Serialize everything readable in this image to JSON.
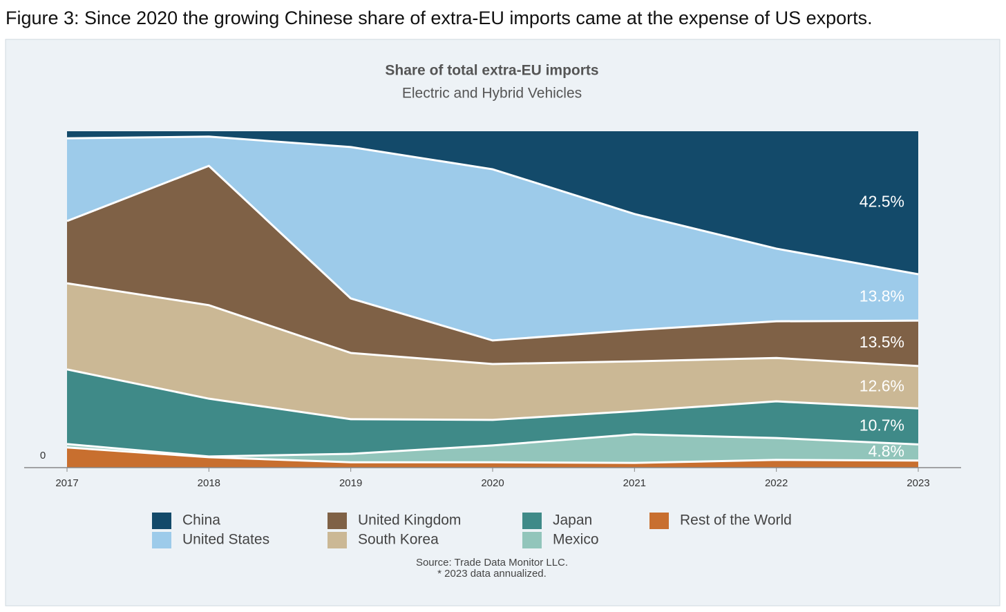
{
  "chart_data": {
    "type": "stacked_area",
    "caption": "Figure 3: Since 2020 the growing Chinese share of extra-EU imports came at the expense of US exports.",
    "title": "Share of total extra-EU imports",
    "subtitle": "Electric and Hybrid Vehicles",
    "source": "Source: Trade Data Monitor LLC.",
    "note": "* 2023 data annualized.",
    "categories": [
      "2017",
      "2018",
      "2019",
      "2020",
      "2021",
      "2022",
      "2023"
    ],
    "ylim": [
      0,
      100
    ],
    "yticks": [
      0
    ],
    "series": [
      {
        "name": "China",
        "color": "#134a6a",
        "values": [
          2.1,
          1.6,
          4.7,
          11.3,
          24.6,
          34.9,
          42.5
        ],
        "value_labels": [
          null,
          null,
          null,
          null,
          null,
          null,
          "42.5%"
        ]
      },
      {
        "name": "United States",
        "color": "#9dcbea",
        "values": [
          24.6,
          8.7,
          45.0,
          50.9,
          34.5,
          21.6,
          13.8
        ],
        "value_labels": [
          null,
          null,
          null,
          null,
          null,
          null,
          "13.8%"
        ]
      },
      {
        "name": "United Kingdom",
        "color": "#7f6146",
        "values": [
          18.5,
          41.4,
          16.2,
          7.0,
          9.3,
          10.9,
          13.5
        ],
        "value_labels": [
          null,
          null,
          null,
          null,
          null,
          null,
          "13.5%"
        ]
      },
      {
        "name": "South Korea",
        "color": "#cbb895",
        "values": [
          25.6,
          27.8,
          19.7,
          16.6,
          14.8,
          12.9,
          12.6
        ],
        "value_labels": [
          null,
          null,
          null,
          null,
          null,
          null,
          "12.6%"
        ]
      },
      {
        "name": "Japan",
        "color": "#3f8a88",
        "values": [
          22.2,
          17.2,
          10.3,
          7.6,
          6.9,
          10.9,
          10.7
        ],
        "value_labels": [
          null,
          null,
          null,
          null,
          null,
          null,
          "10.7%"
        ]
      },
      {
        "name": "Mexico",
        "color": "#92c5bb",
        "values": [
          1.0,
          0.2,
          2.5,
          5.0,
          8.5,
          6.5,
          4.8
        ],
        "value_labels": [
          null,
          null,
          null,
          null,
          null,
          null,
          "4.8%"
        ]
      },
      {
        "name": "Rest of the World",
        "color": "#c86f2f",
        "values": [
          6.0,
          3.1,
          1.6,
          1.6,
          1.4,
          2.3,
          2.1
        ]
      }
    ]
  }
}
